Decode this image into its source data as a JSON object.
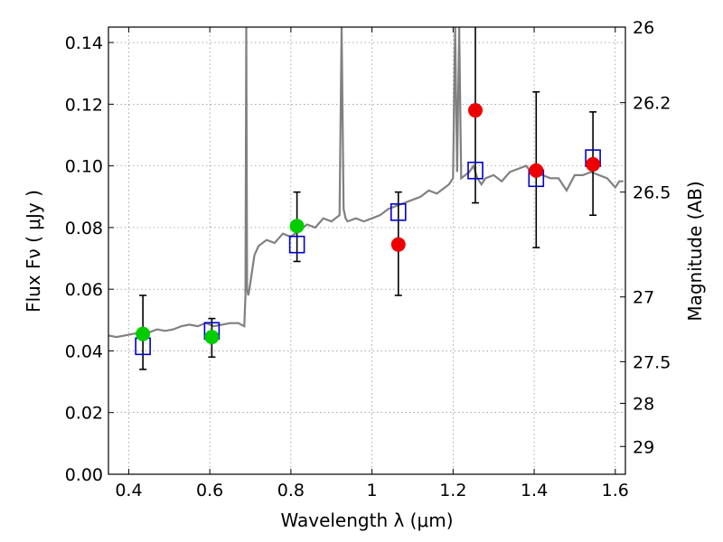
{
  "chart_data": {
    "type": "scatter",
    "title": "",
    "xlabel": "Wavelength  λ (μm)",
    "ylabel": "Flux  Fν  ( μJy )",
    "y2label": "Magnitude (AB)",
    "xlim": [
      0.35,
      1.625
    ],
    "ylim": [
      0.0,
      0.145
    ],
    "x_ticks": [
      0.4,
      0.6,
      0.8,
      1.0,
      1.2,
      1.4,
      1.6
    ],
    "x_tick_labels": [
      "0.4",
      "0.6",
      "0.8",
      "1",
      "1.2",
      "1.4",
      "1.6"
    ],
    "y_ticks": [
      0.0,
      0.02,
      0.04,
      0.06,
      0.08,
      0.1,
      0.12,
      0.14
    ],
    "y_tick_labels": [
      "0.00",
      "0.02",
      "0.04",
      "0.06",
      "0.08",
      "0.10",
      "0.12",
      "0.14"
    ],
    "y2_ticks": [
      {
        "label": "26",
        "flux": 0.145
      },
      {
        "label": "26.2",
        "flux": 0.1205
      },
      {
        "label": "26.5",
        "flux": 0.0915
      },
      {
        "label": "27",
        "flux": 0.0575
      },
      {
        "label": "27.5",
        "flux": 0.0365
      },
      {
        "label": "28",
        "flux": 0.023
      },
      {
        "label": "29",
        "flux": 0.009
      }
    ],
    "grid": true,
    "colors": {
      "spectrum": "#808080",
      "model_boxes": "#0000cc",
      "green_points": "#00cc00",
      "red_points": "#ee0000",
      "errorbars": "#000000"
    },
    "spectrum": {
      "x": [
        0.35,
        0.37,
        0.39,
        0.41,
        0.43,
        0.45,
        0.47,
        0.49,
        0.51,
        0.53,
        0.55,
        0.57,
        0.59,
        0.61,
        0.63,
        0.65,
        0.67,
        0.685,
        0.688,
        0.69,
        0.692,
        0.695,
        0.7,
        0.71,
        0.72,
        0.74,
        0.76,
        0.78,
        0.8,
        0.82,
        0.84,
        0.86,
        0.88,
        0.9,
        0.92,
        0.925,
        0.93,
        0.935,
        0.94,
        0.96,
        0.98,
        1.0,
        1.02,
        1.04,
        1.06,
        1.08,
        1.1,
        1.12,
        1.14,
        1.16,
        1.18,
        1.19,
        1.2,
        1.205,
        1.21,
        1.215,
        1.22,
        1.23,
        1.24,
        1.25,
        1.26,
        1.27,
        1.28,
        1.3,
        1.32,
        1.34,
        1.36,
        1.38,
        1.4,
        1.42,
        1.44,
        1.46,
        1.48,
        1.5,
        1.52,
        1.54,
        1.56,
        1.58,
        1.6,
        1.61,
        1.62
      ],
      "y": [
        0.045,
        0.0445,
        0.045,
        0.0455,
        0.046,
        0.046,
        0.047,
        0.0465,
        0.047,
        0.048,
        0.0485,
        0.048,
        0.049,
        0.048,
        0.0485,
        0.049,
        0.049,
        0.048,
        0.058,
        0.145,
        0.06,
        0.058,
        0.062,
        0.071,
        0.074,
        0.076,
        0.075,
        0.078,
        0.077,
        0.079,
        0.081,
        0.08,
        0.083,
        0.082,
        0.084,
        0.145,
        0.086,
        0.083,
        0.082,
        0.083,
        0.082,
        0.083,
        0.084,
        0.086,
        0.087,
        0.088,
        0.089,
        0.09,
        0.092,
        0.091,
        0.093,
        0.094,
        0.096,
        0.145,
        0.098,
        0.145,
        0.096,
        0.097,
        0.098,
        0.1,
        0.096,
        0.094,
        0.096,
        0.097,
        0.095,
        0.098,
        0.099,
        0.1,
        0.097,
        0.097,
        0.096,
        0.096,
        0.092,
        0.097,
        0.097,
        0.098,
        0.097,
        0.096,
        0.093,
        0.095,
        0.095
      ]
    },
    "model_boxes": [
      {
        "x": 0.435,
        "y": 0.0415
      },
      {
        "x": 0.605,
        "y": 0.0465
      },
      {
        "x": 0.815,
        "y": 0.0745
      },
      {
        "x": 1.065,
        "y": 0.085
      },
      {
        "x": 1.255,
        "y": 0.0985
      },
      {
        "x": 1.405,
        "y": 0.096
      },
      {
        "x": 1.545,
        "y": 0.1025
      }
    ],
    "observations": [
      {
        "x": 0.435,
        "y": 0.0455,
        "yerr_low": 0.034,
        "yerr_high": 0.058,
        "color": "green"
      },
      {
        "x": 0.605,
        "y": 0.0445,
        "yerr_low": 0.038,
        "yerr_high": 0.0505,
        "color": "green"
      },
      {
        "x": 0.815,
        "y": 0.0805,
        "yerr_low": 0.069,
        "yerr_high": 0.0915,
        "color": "green"
      },
      {
        "x": 1.065,
        "y": 0.0745,
        "yerr_low": 0.058,
        "yerr_high": 0.0915,
        "color": "red"
      },
      {
        "x": 1.255,
        "y": 0.118,
        "yerr_low": 0.088,
        "yerr_high": 0.145,
        "color": "red"
      },
      {
        "x": 1.405,
        "y": 0.0985,
        "yerr_low": 0.0735,
        "yerr_high": 0.124,
        "color": "red"
      },
      {
        "x": 1.545,
        "y": 0.1005,
        "yerr_low": 0.084,
        "yerr_high": 0.1175,
        "color": "red"
      }
    ]
  }
}
